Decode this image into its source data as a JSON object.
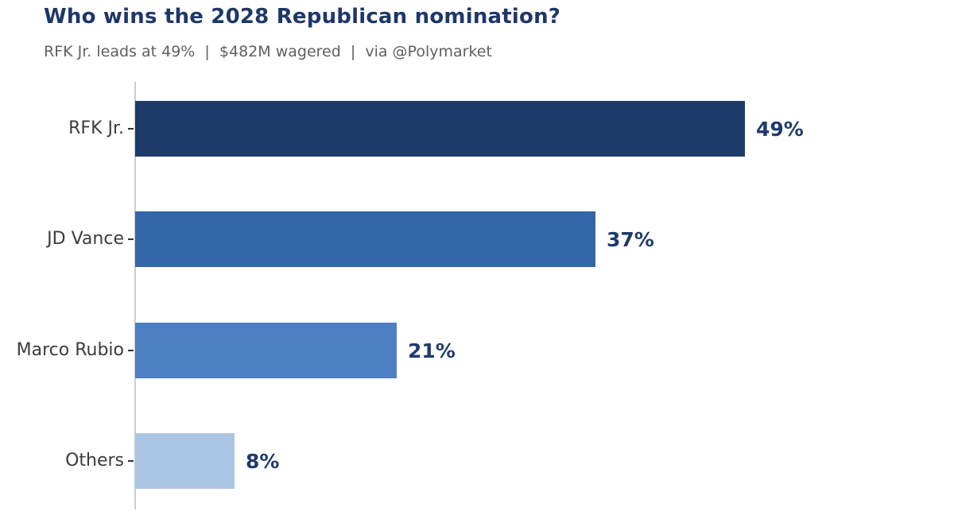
{
  "title": "Who wins the 2028 Republican nomination?",
  "subtitle": "RFK Jr. leads at 49%  |  $482M wagered  |  via @Polymarket",
  "colors": {
    "title_text": "#1d3868",
    "subtitle_text": "#606060",
    "value_label_text": "#1e3a6e",
    "category_label_text": "#3c3c3c",
    "axis_line": "#cccccc",
    "tick": "#333333",
    "background": "#ffffff"
  },
  "chart_data": {
    "type": "bar",
    "orientation": "horizontal",
    "title": "Who wins the 2028 Republican nomination?",
    "subtitle": "RFK Jr. leads at 49%  |  $482M wagered  |  via @Polymarket",
    "categories": [
      "RFK Jr.",
      "JD Vance",
      "Marco Rubio",
      "Others"
    ],
    "values": [
      49,
      37,
      21,
      8
    ],
    "value_labels": [
      "49%",
      "37%",
      "21%",
      "8%"
    ],
    "bar_colors": [
      "#1e3a69",
      "#3366a8",
      "#4d80c3",
      "#abc6e2"
    ],
    "xlabel": "",
    "ylabel": "",
    "xlim": [
      0,
      66
    ],
    "grid": false,
    "legend": false,
    "value_labels_position": "right-of-bar"
  }
}
